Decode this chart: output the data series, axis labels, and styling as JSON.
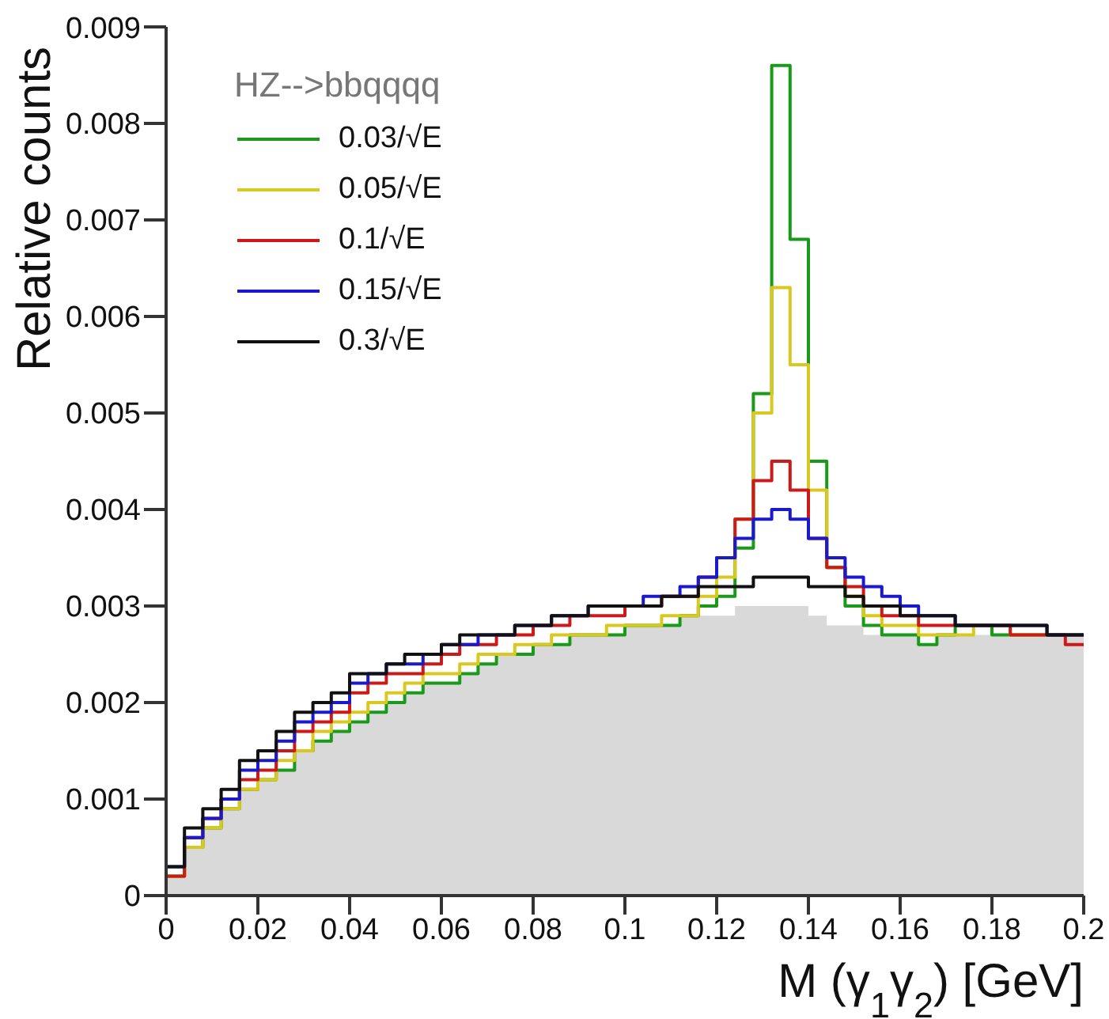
{
  "chart_data": {
    "type": "histogram",
    "xlabel": "M (γ$_{1}$γ$_{2}$) [GeV]",
    "ylabel": "Relative counts",
    "annotations": [
      "HZ-->bbqqqq"
    ],
    "bins": [
      0,
      0.004,
      0.008,
      0.012,
      0.016,
      0.02,
      0.024,
      0.028,
      0.032,
      0.036,
      0.04,
      0.044,
      0.048,
      0.052,
      0.056,
      0.06,
      0.064,
      0.068,
      0.072,
      0.076,
      0.08,
      0.084,
      0.088,
      0.092,
      0.096,
      0.1,
      0.104,
      0.108,
      0.112,
      0.116,
      0.12,
      0.124,
      0.128,
      0.132,
      0.136,
      0.14,
      0.144,
      0.148,
      0.152,
      0.156,
      0.16,
      0.164,
      0.168,
      0.172,
      0.176,
      0.18,
      0.184,
      0.188,
      0.192,
      0.196,
      0.2
    ],
    "series": [
      {
        "type": "area",
        "color": "#d9d9d9",
        "x": [
          0,
          0.004,
          0.008,
          0.012,
          0.016,
          0.02,
          0.024,
          0.028,
          0.032,
          0.036,
          0.04,
          0.044,
          0.048,
          0.052,
          0.056,
          0.06,
          0.064,
          0.068,
          0.072,
          0.076,
          0.08,
          0.084,
          0.088,
          0.092,
          0.096,
          0.1,
          0.104,
          0.108,
          0.112,
          0.116,
          0.12,
          0.124,
          0.128,
          0.132,
          0.136,
          0.14,
          0.144,
          0.148,
          0.152,
          0.156,
          0.16,
          0.164,
          0.168,
          0.172,
          0.176,
          0.18,
          0.184,
          0.188,
          0.192,
          0.196,
          0.2
        ],
        "values": [
          0.0002,
          0.0005,
          0.0007,
          0.0009,
          0.0011,
          0.0012,
          0.0013,
          0.0015,
          0.0016,
          0.0017,
          0.0018,
          0.0019,
          0.002,
          0.0021,
          0.0022,
          0.0022,
          0.0023,
          0.0024,
          0.0025,
          0.0025,
          0.0026,
          0.0026,
          0.0027,
          0.0027,
          0.0027,
          0.0028,
          0.0028,
          0.0028,
          0.0029,
          0.0029,
          0.0029,
          0.003,
          0.003,
          0.003,
          0.003,
          0.0029,
          0.0028,
          0.0028,
          0.0027,
          0.0027,
          0.0027,
          0.0026,
          0.0027,
          0.0027,
          0.0027,
          0.0027,
          0.0027,
          0.0027,
          0.0027,
          0.0027,
          0.0027
        ]
      },
      {
        "name": "0.03/√E",
        "color": "#1a9a1a",
        "values": [
          0.0002,
          0.0005,
          0.0007,
          0.0009,
          0.0011,
          0.0012,
          0.0013,
          0.0015,
          0.0016,
          0.0017,
          0.0018,
          0.0019,
          0.002,
          0.0021,
          0.0022,
          0.0022,
          0.0023,
          0.0024,
          0.0025,
          0.0025,
          0.0026,
          0.0026,
          0.0027,
          0.0027,
          0.0027,
          0.0028,
          0.0028,
          0.0028,
          0.0029,
          0.003,
          0.0031,
          0.0036,
          0.0052,
          0.0086,
          0.0068,
          0.0045,
          0.0034,
          0.003,
          0.0028,
          0.0027,
          0.0027,
          0.0026,
          0.0027,
          0.0028,
          0.0028,
          0.0027,
          0.0027,
          0.0027,
          0.0027,
          0.0027
        ]
      },
      {
        "name": "0.05/√E",
        "color": "#d9c81e",
        "values": [
          0.0002,
          0.0005,
          0.0007,
          0.0009,
          0.0011,
          0.0012,
          0.0014,
          0.0015,
          0.0017,
          0.0018,
          0.0019,
          0.002,
          0.0021,
          0.0022,
          0.0023,
          0.0023,
          0.0024,
          0.0025,
          0.0025,
          0.0026,
          0.0026,
          0.0027,
          0.0027,
          0.0027,
          0.0028,
          0.0028,
          0.0028,
          0.0029,
          0.0029,
          0.0031,
          0.0033,
          0.0039,
          0.005,
          0.0063,
          0.0055,
          0.0042,
          0.0034,
          0.0031,
          0.0029,
          0.0028,
          0.0028,
          0.0027,
          0.0027,
          0.0027,
          0.0028,
          0.0028,
          0.0027,
          0.0027,
          0.0027,
          0.0027
        ]
      },
      {
        "name": "0.1/√E",
        "color": "#cc1a1a",
        "values": [
          0.0002,
          0.0006,
          0.0008,
          0.001,
          0.0012,
          0.0013,
          0.0015,
          0.0017,
          0.0018,
          0.0019,
          0.0021,
          0.0022,
          0.0023,
          0.0023,
          0.0024,
          0.0025,
          0.0026,
          0.0026,
          0.0027,
          0.0027,
          0.0028,
          0.0028,
          0.0029,
          0.0029,
          0.0029,
          0.003,
          0.003,
          0.0031,
          0.0031,
          0.0033,
          0.0035,
          0.0039,
          0.0043,
          0.0045,
          0.0042,
          0.0037,
          0.0034,
          0.0032,
          0.003,
          0.0029,
          0.0029,
          0.0028,
          0.0028,
          0.0028,
          0.0028,
          0.0028,
          0.0027,
          0.0027,
          0.0027,
          0.0026
        ]
      },
      {
        "name": "0.15/√E",
        "color": "#1a1acc",
        "values": [
          0.0003,
          0.0006,
          0.0008,
          0.001,
          0.0013,
          0.0014,
          0.0016,
          0.0018,
          0.0019,
          0.002,
          0.0022,
          0.0023,
          0.0024,
          0.0024,
          0.0025,
          0.0026,
          0.0026,
          0.0027,
          0.0027,
          0.0028,
          0.0028,
          0.0029,
          0.0029,
          0.003,
          0.003,
          0.003,
          0.0031,
          0.0031,
          0.0032,
          0.0033,
          0.0035,
          0.0037,
          0.0039,
          0.004,
          0.0039,
          0.0037,
          0.0035,
          0.0033,
          0.0032,
          0.0031,
          0.003,
          0.0029,
          0.0029,
          0.0028,
          0.0028,
          0.0028,
          0.0028,
          0.0028,
          0.0027,
          0.0027
        ]
      },
      {
        "name": "0.3/√E",
        "color": "#111111",
        "values": [
          0.0003,
          0.0007,
          0.0009,
          0.0011,
          0.0014,
          0.0015,
          0.0017,
          0.0019,
          0.002,
          0.0021,
          0.0023,
          0.0023,
          0.0024,
          0.0025,
          0.0025,
          0.0026,
          0.0027,
          0.0027,
          0.0027,
          0.0028,
          0.0028,
          0.0029,
          0.0029,
          0.003,
          0.003,
          0.003,
          0.003,
          0.0031,
          0.0031,
          0.0032,
          0.0032,
          0.0032,
          0.0033,
          0.0033,
          0.0033,
          0.0032,
          0.0032,
          0.0031,
          0.003,
          0.003,
          0.0029,
          0.0029,
          0.0029,
          0.0028,
          0.0028,
          0.0028,
          0.0028,
          0.0028,
          0.0027,
          0.0027
        ]
      }
    ],
    "xlim": [
      0,
      0.2
    ],
    "xticks": [
      0,
      0.02,
      0.04,
      0.06,
      0.08,
      0.1,
      0.12,
      0.14,
      0.16,
      0.18,
      0.2
    ],
    "ylim": [
      0,
      0.009
    ],
    "yticks": [
      0,
      0.001,
      0.002,
      0.003,
      0.004,
      0.005,
      0.006,
      0.007,
      0.008,
      0.009
    ],
    "legend": "top left",
    "grid": false
  }
}
